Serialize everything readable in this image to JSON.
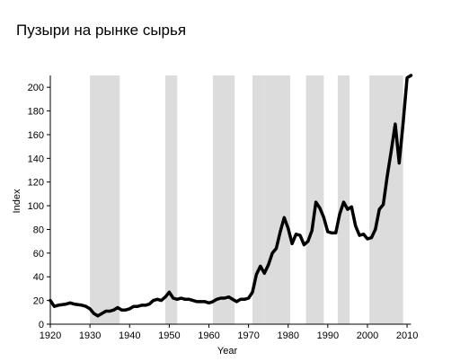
{
  "chart_data": {
    "type": "line",
    "title": "Пузыри на рынке сырья",
    "xlabel": "Year",
    "ylabel": "Index",
    "xlim": [
      1920,
      2011
    ],
    "ylim": [
      0,
      210
    ],
    "x_ticks": [
      1920,
      1930,
      1940,
      1950,
      1960,
      1970,
      1980,
      1990,
      2000,
      2010
    ],
    "y_ticks": [
      0,
      20,
      40,
      60,
      80,
      100,
      120,
      140,
      160,
      180,
      200
    ],
    "grid": false,
    "shaded_periods": [
      [
        1930,
        1937.5
      ],
      [
        1949,
        1952
      ],
      [
        1961,
        1966.5
      ],
      [
        1971,
        1974
      ],
      [
        1974,
        1980.5
      ],
      [
        1984.5,
        1989
      ],
      [
        1992.5,
        1995.5
      ],
      [
        2000.5,
        2009
      ]
    ],
    "series": [
      {
        "color": "#000000",
        "x": [
          1920,
          1921,
          1922,
          1924,
          1925,
          1926,
          1928,
          1929,
          1930,
          1931,
          1932,
          1933,
          1934,
          1935,
          1936,
          1937,
          1938,
          1939,
          1940,
          1941,
          1942,
          1943,
          1944,
          1945,
          1946,
          1947,
          1948,
          1949,
          1950,
          1951,
          1952,
          1953,
          1954,
          1955,
          1956,
          1957,
          1958,
          1959,
          1960,
          1961,
          1962,
          1963,
          1964,
          1965,
          1966,
          1967,
          1968,
          1969,
          1970,
          1971,
          1972,
          1973,
          1974,
          1975,
          1976,
          1977,
          1978,
          1979,
          1980,
          1981,
          1982,
          1983,
          1984,
          1985,
          1986,
          1987,
          1988,
          1989,
          1990,
          1991,
          1992,
          1993,
          1994,
          1995,
          1996,
          1997,
          1998,
          1999,
          2000,
          2001,
          2002,
          2003,
          2004,
          2005,
          2006,
          2007,
          2008,
          2009,
          2010,
          2011
        ],
        "values": [
          20,
          15,
          16,
          17,
          18,
          17,
          16,
          15,
          13,
          9,
          7,
          9,
          11,
          11,
          12,
          14,
          12,
          12,
          13,
          15,
          15,
          16,
          16,
          17,
          20,
          21,
          20,
          23,
          27,
          22,
          21,
          22,
          21,
          21,
          20,
          19,
          19,
          19,
          18,
          19,
          21,
          22,
          22,
          23,
          21,
          19,
          21,
          21,
          22,
          27,
          42,
          49,
          43,
          50,
          60,
          64,
          78,
          90,
          81,
          68,
          76,
          75,
          67,
          70,
          79,
          103,
          98,
          90,
          78,
          77,
          77,
          93,
          103,
          97,
          99,
          83,
          75,
          76,
          72,
          73,
          80,
          97,
          101,
          125,
          146,
          169,
          136,
          170,
          208,
          210
        ]
      }
    ]
  }
}
